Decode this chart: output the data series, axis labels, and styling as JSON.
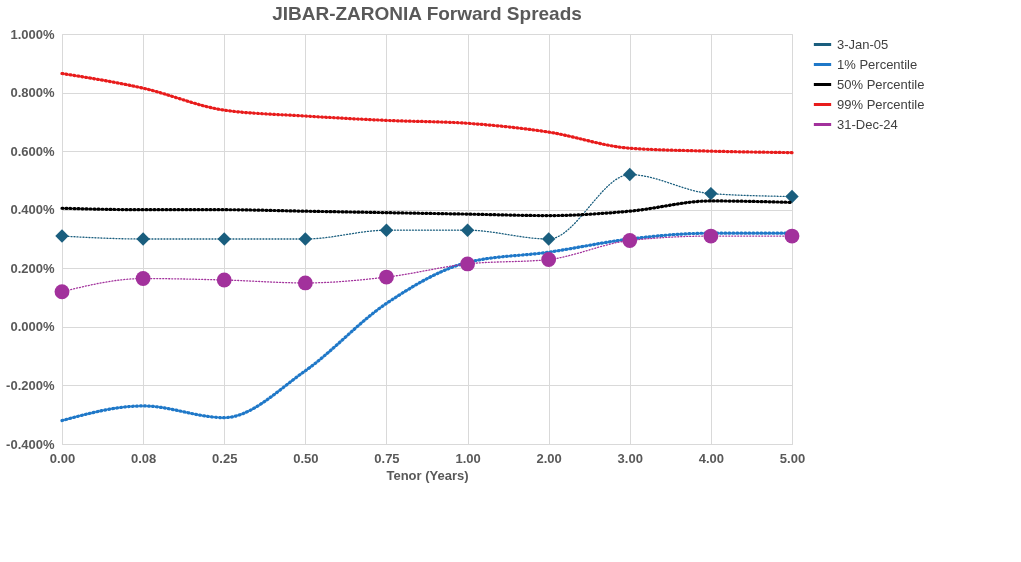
{
  "chart_data": {
    "type": "line",
    "title": "JIBAR-ZARONIA Forward Spreads",
    "xlabel": "Tenor (Years)",
    "categories": [
      "0.00",
      "0.08",
      "0.25",
      "0.50",
      "0.75",
      "1.00",
      "2.00",
      "3.00",
      "4.00",
      "5.00"
    ],
    "ylim": [
      -0.4,
      1
    ],
    "yticks": [
      {
        "value": -0.4,
        "label": "-0.400%"
      },
      {
        "value": -0.2,
        "label": "-0.200%"
      },
      {
        "value": 0,
        "label": "0.000%"
      },
      {
        "value": 0.2,
        "label": "0.200%"
      },
      {
        "value": 0.4,
        "label": "0.400%"
      },
      {
        "value": 0.6,
        "label": "0.600%"
      },
      {
        "value": 0.8,
        "label": "0.800%"
      },
      {
        "value": 1,
        "label": "1.000%"
      }
    ],
    "grid": true,
    "legend": "right",
    "series": [
      {
        "name": "3-Jan-05",
        "color": "#1a5e7e",
        "marker": "diamond",
        "line_style": "dotted",
        "values": [
          0.31,
          0.3,
          0.3,
          0.3,
          0.33,
          0.33,
          0.3,
          0.52,
          0.455,
          0.445
        ]
      },
      {
        "name": "1% Percentile",
        "color": "#1f78c8",
        "marker": "none",
        "line_style": "dotted",
        "values": [
          -0.32,
          -0.27,
          -0.31,
          -0.15,
          0.08,
          0.22,
          0.255,
          0.3,
          0.32,
          0.32
        ]
      },
      {
        "name": "50% Percentile",
        "color": "#000000",
        "marker": "none",
        "line_style": "dotted",
        "values": [
          0.405,
          0.4,
          0.4,
          0.395,
          0.39,
          0.385,
          0.38,
          0.395,
          0.43,
          0.425
        ]
      },
      {
        "name": "99% Percentile",
        "color": "#e81c1c",
        "marker": "none",
        "line_style": "dotted",
        "values": [
          0.865,
          0.815,
          0.74,
          0.72,
          0.705,
          0.695,
          0.665,
          0.61,
          0.6,
          0.595
        ]
      },
      {
        "name": "31-Dec-24",
        "color": "#a2319c",
        "marker": "circle",
        "line_style": "dotted",
        "values": [
          0.12,
          0.165,
          0.16,
          0.15,
          0.17,
          0.215,
          0.23,
          0.295,
          0.31,
          0.31
        ]
      }
    ]
  }
}
